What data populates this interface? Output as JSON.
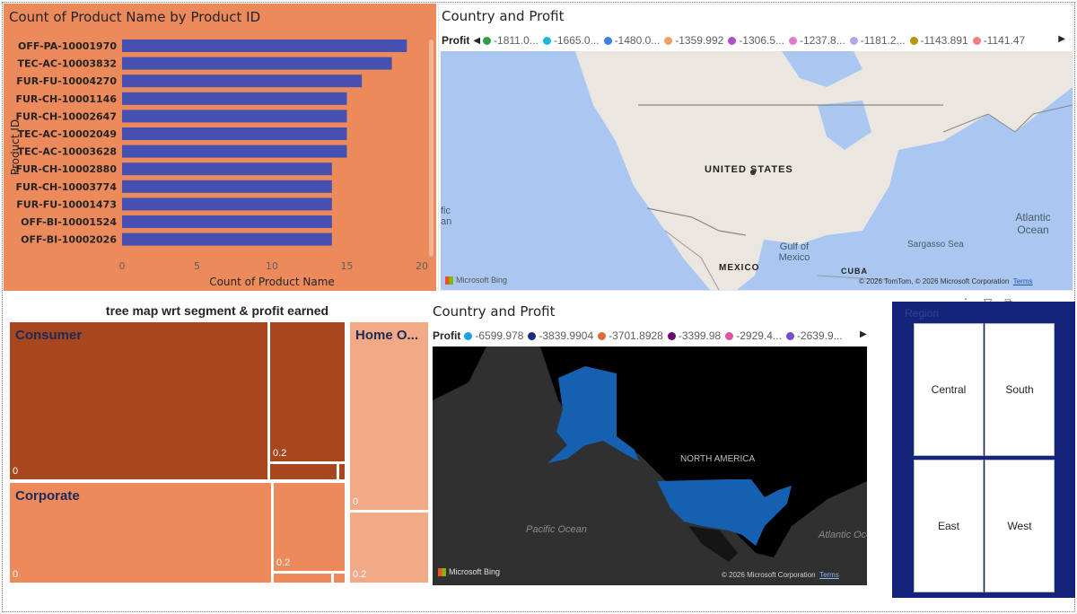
{
  "bar_chart": {
    "title": "Count of Product Name by Product ID",
    "colors": {
      "bar": "#4650b0",
      "background": "#ec8a5c"
    },
    "chart_data": {
      "type": "bar",
      "orientation": "horizontal",
      "title": "Count of Product Name by Product ID",
      "xlabel": "Count of Product Name",
      "ylabel": "Product ID",
      "categories": [
        "OFF-PA-10001970",
        "TEC-AC-10003832",
        "FUR-FU-10004270",
        "FUR-CH-10001146",
        "FUR-CH-10002647",
        "TEC-AC-10002049",
        "TEC-AC-10003628",
        "FUR-CH-10002880",
        "FUR-CH-10003774",
        "FUR-FU-10001473",
        "OFF-BI-10001524",
        "OFF-BI-10002026"
      ],
      "values": [
        19,
        18,
        16,
        15,
        15,
        15,
        15,
        14,
        14,
        14,
        14,
        14
      ],
      "xticks": [
        "0",
        "5",
        "10",
        "15",
        "20"
      ],
      "xlim": [
        0,
        20
      ],
      "grid": false
    }
  },
  "map1": {
    "title": "Country and Profit",
    "legend_title": "Profit",
    "legend_items": [
      {
        "label": "-1811.0...",
        "color": "#2e9e46"
      },
      {
        "label": "-1665.0...",
        "color": "#1cb8d8"
      },
      {
        "label": "-1480.0...",
        "color": "#3d7fe0"
      },
      {
        "label": "-1359.992",
        "color": "#f0a060"
      },
      {
        "label": "-1306.5...",
        "color": "#b050c8"
      },
      {
        "label": "-1237.8...",
        "color": "#e27bd0"
      },
      {
        "label": "-1181.2...",
        "color": "#b0a8ec"
      },
      {
        "label": "-1143.891",
        "color": "#b8960c"
      },
      {
        "label": "-1141.47",
        "color": "#f08080"
      }
    ],
    "labels": {
      "us": "UNITED STATES",
      "mexico": "MEXICO",
      "cuba": "CUBA",
      "gulf": "Gulf of Mexico",
      "atlantic": "Atlantic Ocean",
      "sargasso": "Sargasso Sea",
      "pacific_fragment": "fic an"
    },
    "provider": "Microsoft Bing",
    "attribution": "© 2026 TomTom, © 2026 Microsoft Corporation",
    "terms": "Terms"
  },
  "treemap": {
    "title": "tree map wrt segment & profit earned",
    "segments": [
      {
        "label": "Consumer",
        "value": "0"
      },
      {
        "label": "",
        "value": "0.2"
      },
      {
        "label": "Corporate",
        "value": "0"
      },
      {
        "label": "",
        "value": "0.2"
      },
      {
        "label": "Home O...",
        "value": "0"
      },
      {
        "label": "",
        "value": "0.2"
      }
    ]
  },
  "map2": {
    "title": "Country and Profit",
    "legend_title": "Profit",
    "legend_items": [
      {
        "label": "-6599.978",
        "color": "#1aa0e8"
      },
      {
        "label": "-3839.9904",
        "color": "#1a2a80"
      },
      {
        "label": "-3701.8928",
        "color": "#e06c34"
      },
      {
        "label": "-3399.98",
        "color": "#6a0a70"
      },
      {
        "label": "-2929.4...",
        "color": "#e050a8"
      },
      {
        "label": "-2639.9...",
        "color": "#7a4ad0"
      }
    ],
    "labels": {
      "north_america": "NORTH AMERICA",
      "pacific": "Pacific Ocean",
      "atlantic": "Atlantic Ocein"
    },
    "provider": "Microsoft Bing",
    "attribution": "© 2026 Microsoft Corporation",
    "terms": "Terms",
    "colors": {
      "country": "#1560b0",
      "land": "#000000",
      "ocean": "#303030"
    }
  },
  "slicer": {
    "title": "Region",
    "options": [
      "Central",
      "South",
      "East",
      "West"
    ]
  }
}
